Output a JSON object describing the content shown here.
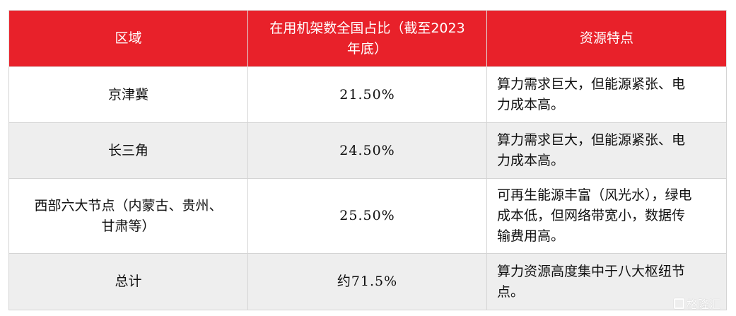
{
  "table": {
    "headers": [
      "区域",
      [
        "在用机架数全国占比（截至2023",
        "年底）"
      ],
      "资源特点"
    ],
    "rows": [
      {
        "region": [
          "京津冀"
        ],
        "share": "21.50%",
        "features": [
          "算力需求巨大，但能源紧张、电",
          "力成本高。"
        ]
      },
      {
        "region": [
          "长三角"
        ],
        "share": "24.50%",
        "features": [
          "算力需求巨大，但能源紧张、电",
          "力成本高。"
        ]
      },
      {
        "region": [
          "西部六大节点（内蒙古、贵州、",
          "甘肃等）"
        ],
        "share": "25.50%",
        "features": [
          "可再生能源丰富（风光水），绿电",
          "成本低，但网络带宽小，数据传",
          "输费用高。"
        ]
      },
      {
        "region": [
          "总计"
        ],
        "share": "约71.5%",
        "features": [
          "算力资源高度集中于八大枢纽节",
          "点。"
        ]
      }
    ]
  },
  "watermark": "格隆汇",
  "colors": {
    "header_bg": "#e8212a",
    "stripe": "#eeeeee"
  }
}
